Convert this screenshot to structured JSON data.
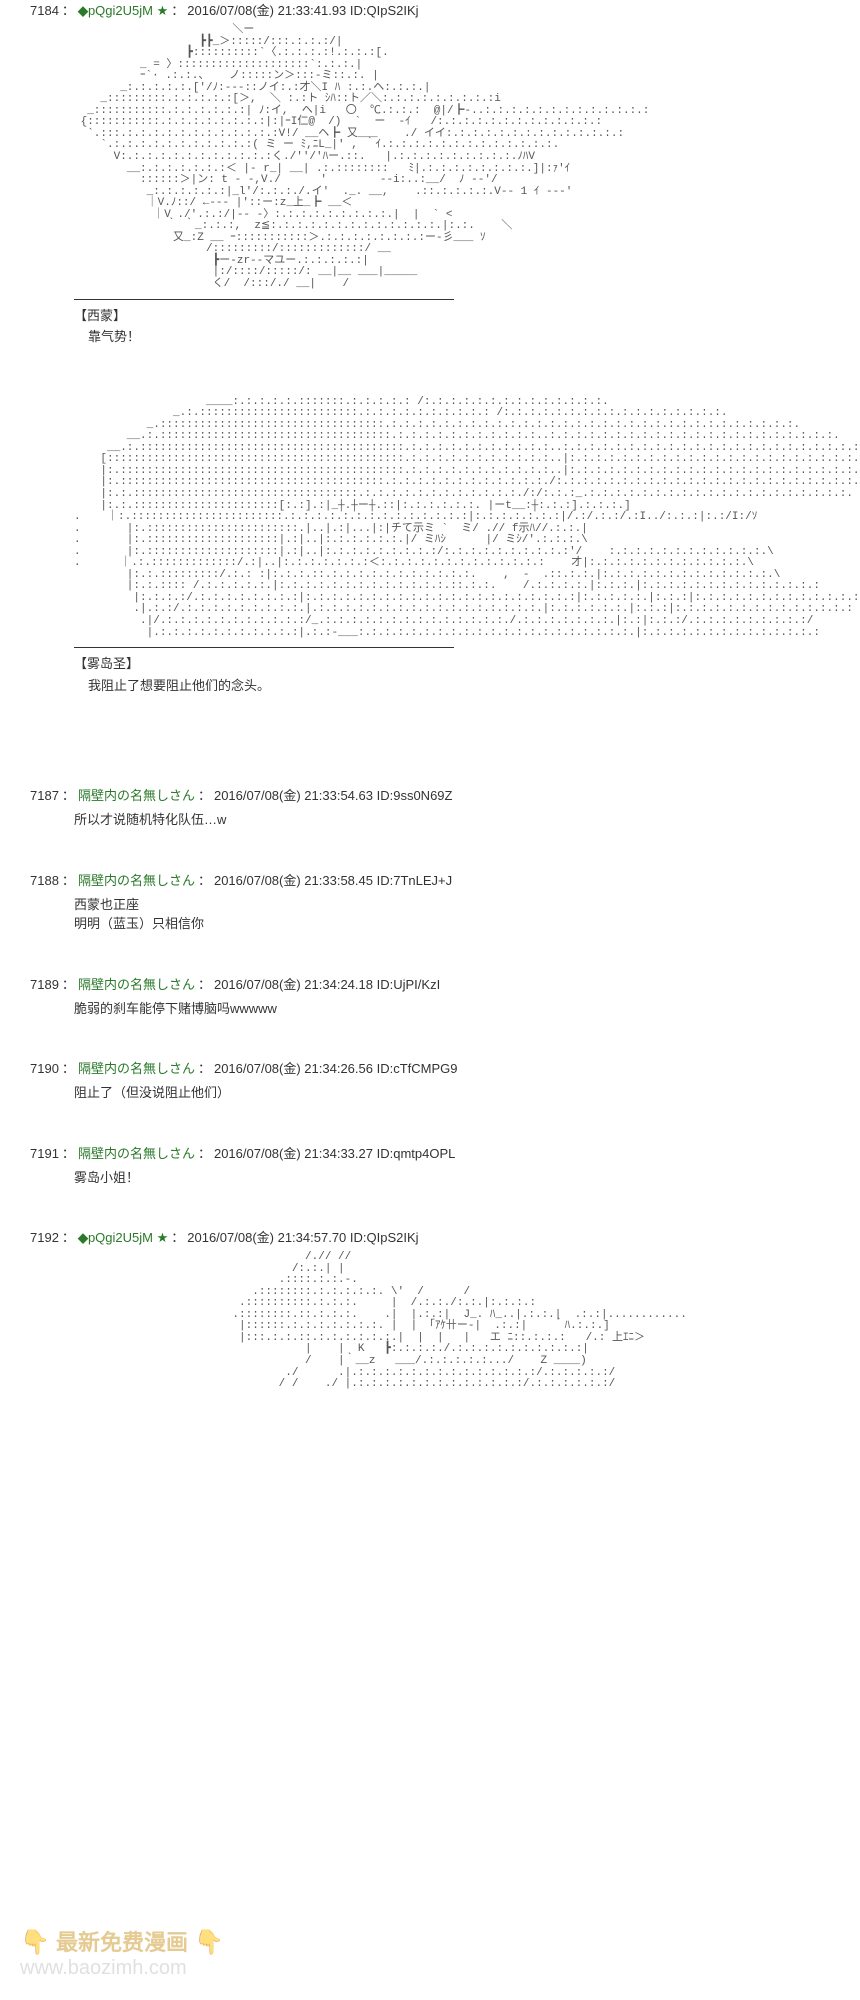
{
  "posts": [
    {
      "num": "7184",
      "is_trip": true,
      "trip_code": "pQgi2U5jM",
      "date": "2016/07/08(金) 21:33:41.93",
      "id": "ID:QIpS2IKj",
      "aa_blocks": [
        {
          "art": "                        ＼ー\n                   ┣┣_＞:::::/:::.:.:.:/|\n                 ┣::::::::::`〈.:.:.:.:!.:.:.:[.\n          _ = 〉::::::::::::::::::::`:.:.:.|\n          ｰ`· .:.:.、   ノ:::::ン＞:::-ミ::.:. |\n       _:.:.:.:.:.['/ﾉ:---::ノイ:.:才＼I ﾊ :.:.ヘ:.:.:.|\n    _:::::::::.:.:.:.:.:[＞,  ＼ :.:ト ｼﾊ::ト／＼:.:.:.:.:.:.:.:.:i\n  _:::::::::::.:.:.:.:.:.:| ﾉ:イ,  ヘ|i   〇  ℃.:.:.:  @|/┣-..:.:.:.:.:.:.:.:.:.:.:.:.:\n {:::::::::::.:.:.:.:.:.:.:.:|:|ｰI仁@  /)  `  ー  -ｲ   /:.:.:.:.:.:.:.:.:.:.:.:.:\n  `.:::.:.:.:.:.:.:.:.:.:.:.:.:V!/ __ヘ┣ 又___    ./ イイ:.:.:.:.:.:.:.:.:.:.:.:.:.:\n    `.:.:.:.:.:.:.:.:.:.:.:( ミ ー ﾐ,ﾆL_|' , ｀ｲ.:.:.:.:.:.:.:.:.:.:.:.:.:.\n      V:.:.:.:.:.:.:.:.:.:.:.:く./''/'ﾊー.::.   |.:.:.:.:.:.:.:.:.:.ﾉﾊV\n        __:.:.:.:.:.:.:＜ |- r_| __| .:.::::::::   ﾐ|.:.:.:.:.:.:.:.:.]|:ｧ'ｲ\n          ::::::＞|ン: t - -,V./      '        --i:..:__/  ﾉ --'/\n           _:.:.:.:.:.:|_l'/:.:.:./.イ'  ._. __,    .::.:.:.:.:.V-- 1 ｲ ---'\n           ｜V.ﾉ::/ ←--- |'::ー:z_上_┣ __＜\n            ｜V ./'.:.:/|-- -〉:.:.:.:.:.:.:.:.:.|  |  ` <\n              ｀ ｀_:.:.:,  z≦:.:.:.:.:.:.:.:.:.:.:.:.:.|:.:.    ＼\n               又_:Z __ ｰ:::::::::::＞.:.:.:.:.:.:.:.:ー‐彡___ ｿ\n                    /:::::::::/:::::::::::::/ __\n                     ┣ー-zr--マユー.:.:.:.:.:|\n                     |:/::::/:::::/: __|__ ___|_____\n                     く/  /:::/./ __|    /",
          "speaker": "【西蒙】",
          "line": "靠气势！"
        },
        {
          "art": "                    ____:.:.:.:.:.:::::::.:.:.:.:.: /:.:.:.:.:.:.:.:.:.:.:.:.:.:.\n               _.:.::::::::::::::::::::::::.:.:.:.:.:.:.:.:.:.: /:.:.:.:.:.:.:.:.:.:.:.:.:.:.:.:.:.\n           _.::::::::::::::::::::::::::::::::::.:.:.:.:.:.:.:.:.:.:.:.:.:.:.:.:.:.:.:.:.:.:.:.:.:.:.:.:.:.:.:.\n        __.:.:::::::::::::::::::::::::::::::::::.:.:.:.:.:.:.:.:.:.:.:..:.:.:.:.:.:.:.:.:.:.:.:.:.:.:.:.:.:.:.:.:.:.\n     __.:.::::::::::::::::::::::::::::::::::::::::.:.:.:.:.:.:.:.:.:.:.:..:.:.:.:.:.:.:.:.:.:.:.:.:.:.:.:.:.:.:.:.:.:.:.:.\n    [:::::::::::::::::::::::::::::::::::::::::::::.:.:.:.:.:.:.:.:.:.:.:..|:.:.:.:.:.:.:.:.:.:.:.:.:.:.:.:.:.:.:.:.:.:.:.:.\n    |:.:::::::::::::::::::::::::::::::::::::::::::.:.:.:.:.:.:.:.:.:.:.:..|:.:.:.:.:.:.:.:.:.:.:.:.:.:.:.:.:.:.:.:.:.:.:.:.\n    |:.::::::::::::::::::::::::::::::::::::::::.:.:.:.:.:.:.:.:.:.:.:.:./:.:.:.:.:.:.:.:.:.:.:.:.:.:.:.:.:.:.:.:.:.:.:.:.\n    |:.:.::::::::::::::::::::::::::::::::::.:.:.:.:.:.:.:.:.:.:.:.:./:/:.:.:_.:.:.:.:.:.:.:.:.:.:.:.:.:.:.:.:.:.:.:.:.\n    |:.:.::::::::::::::::::::::[:.:].:|_┼.┼ー┼.::|:.:.:.:.:.:. |ーt__:┼:.:.:].:.:.:.]\n.    ｜:.:::::::::::::::::::::::.:.:.:.:.:.:.:.:.:.:.:.:.:.:|:.:.:.:.:.:.:|/.:/.:.:/.:I../:.:.:|:.:/I:/ｿ\n.       |:.:::::::::::::::::::::::.|..|.:|...|:|チて示ミ `  ミ/ .// f示ﾊ//.:.:.|\n.       |:.::::::::::::::::::::|.:|..|:.:.:.:.:.:.|/ ミﾊｼ      |/ ミｼ/'.:.:.:.\\\n.       |:.::::::::::::::::::::|.:|..|:.:.:.:.:.:.:.:.:/:.:.:.:.:.:.:.:.:.:'/    :.:.:.:.:.:.:.:.:.:.:.:.\\\n.      ｜.:.:::::::::::::/.:|..|:.:.:.:.:.:.:＜:.:.:.:.:.:.:.:.:.:.:.:.:    才|:.:.:.:.:.:.:.:.:.:.:.:.\\\n        |:.:.:::::::::/.:.: :|:.:.:.::.:.:.:.:.:.:.:.:.:.:.:.    ,  -  .::.:.:.|:.:.:.:.:.:.:.:.:.:.:.:.:.\\\n        |:.:.:::: /.:.:.:.:.:.|:.:.:.:.:.:.:.:.:.:.:.:.:.::.:.:.    /.:.:.:.:.|:.:.:.|:.:.:.:.:.:.:.:.:.:.:.:.:.:\n         |:.:.:.:/.:.:.:.:.:.:.:.:|:.:.:.:.:.:.:.:.:.:.:.:.:.:.:.:.:.:.:.:.:|:.:.:.:.:.|:.:.:|:.:.:.:.:.:.:.:.:.:.:.:.:.:\n         .|.:.:/.:.:.:.:.:.:.:.:.:.|.:.:.:.:.:.:.:.:.:.:.:.:.:.:.:.:.:.|:.:.:.:.:.:.|:.:.:|:.:.:.:.:.:.:.:.:.:.:.:.:.:\n          .|/.:.:.:.:.:.:.:.:.:.:.:/_.:.:.:.:.:.:.:.:.:.:.:.:.:.:./.:.:.:.:.:.:.:.|:.:|:.:.:/.:.:.:.:.:.:.:.:.:/\n           |.:.:.:.:.:.:.:.:.:.:.:|.:.:-___:.:.:.:.:.:.:.:.:.:.:.:.:.:.:.:.:.:.:.:.:.|:.:.:.:.:.:.:.:.:.:.:.:.:.:",
          "speaker": "【雾岛圣】",
          "line": "我阻止了想要阻止他们的念头。"
        }
      ]
    },
    {
      "num": "7187",
      "is_trip": false,
      "name": "隔壁内の名無しさん",
      "date": "2016/07/08(金) 21:33:54.63",
      "id": "ID:9ss0N69Z",
      "body": "所以才说随机特化队伍…w"
    },
    {
      "num": "7188",
      "is_trip": false,
      "name": "隔壁内の名無しさん",
      "date": "2016/07/08(金) 21:33:58.45",
      "id": "ID:7TnLEJ+J",
      "body": "西蒙也正座\n明明（蓝玉）只相信你"
    },
    {
      "num": "7189",
      "is_trip": false,
      "name": "隔壁内の名無しさん",
      "date": "2016/07/08(金) 21:34:24.18",
      "id": "ID:UjPI/KzI",
      "body": "脆弱的刹车能停下赌博脑吗wwwww"
    },
    {
      "num": "7190",
      "is_trip": false,
      "name": "隔壁内の名無しさん",
      "date": "2016/07/08(金) 21:34:26.56",
      "id": "ID:cTfCMPG9",
      "body": "阻止了（但没说阻止他们）"
    },
    {
      "num": "7191",
      "is_trip": false,
      "name": "隔壁内の名無しさん",
      "date": "2016/07/08(金) 21:34:33.27",
      "id": "ID:qmtp4OPL",
      "body": "雾岛小姐！"
    },
    {
      "num": "7192",
      "is_trip": true,
      "trip_code": "pQgi2U5jM",
      "date": "2016/07/08(金) 21:34:57.70",
      "id": "ID:QIpS2IKj",
      "aa_blocks": [
        {
          "art": "                                   /.// //\n                                 /:.:.| |\n                               .::::.:.:.-.\n                           .::::::::.:.:.:.:.:. \\'  /      /\n                         .::::::::::.:.:.:.     |  /.:.:./:.:.|:.:.:.:\n                        .::::::::.::.:.:.:.    .|  |.:.:|  J_. ﾊ_..|.:.:.|  .:.:|............\n                         |::::::.:.:.:.:.:.:.:. |  | 「ｱｹ卄ー-|  .:.:|    ｀ﾊ.:.:.]\n                         |:::.:.:.::.:.:.:.:.:.:.|  |  |   |   エ ﾆ::.:.:.:   /.: 上ｴﾆ＞\n                                   |    |  K   ┣:.:.:.:./.:.:.:.:.:.:.:.:.:.:|\n                                   /    |｀__z   ___/.:.:.:.:.:.../    Z ____)\n                                ./      .|.:.:.:.:.:.:.:.:.:.:.:.:.:.:/.:.:.:.:.:/\n                               / /    ./ |.:.:.:.:.:.:.:.:.:.:.:.:.:/.:.:.:.:.:.:/"
        }
      ]
    }
  ],
  "watermark": {
    "line1": "最新免费漫画",
    "line2": "www.baozimh.com"
  }
}
